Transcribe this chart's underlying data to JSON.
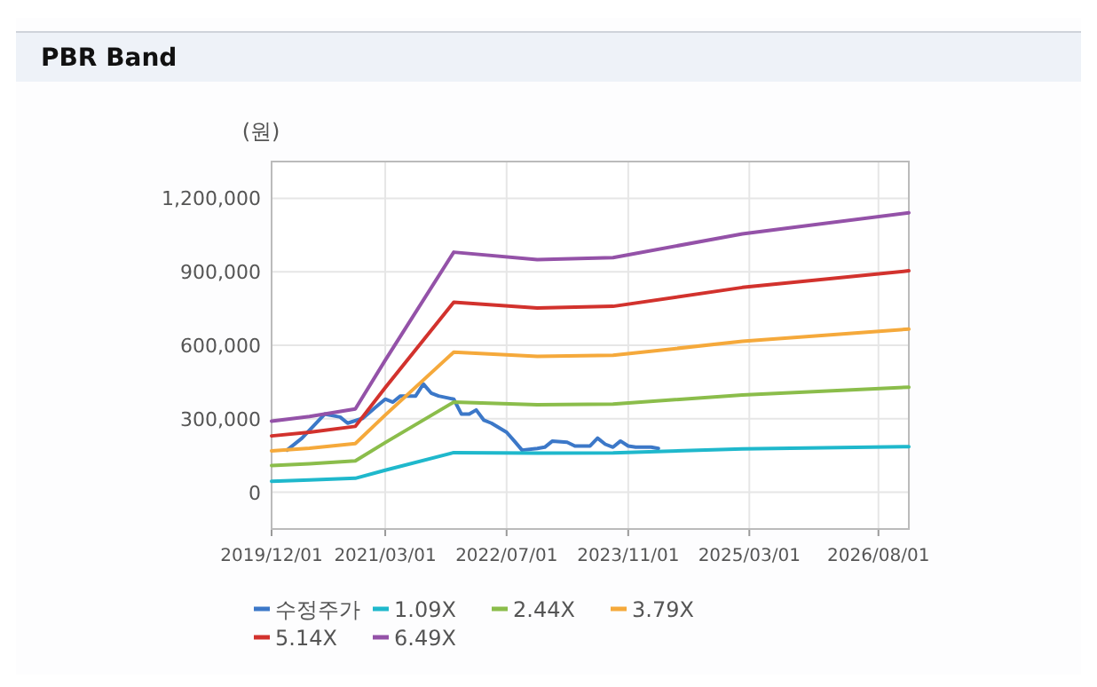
{
  "chart_data": {
    "type": "line",
    "title": "PBR Band",
    "ylabel": "(원)",
    "xlim": [
      "2019-12-01",
      "2026-12-01"
    ],
    "xticks": [
      {
        "value": "2019-12-01",
        "label": "2019/12/01"
      },
      {
        "value": "2021-03-01",
        "label": "2021/03/01"
      },
      {
        "value": "2022-07-01",
        "label": "2022/07/01"
      },
      {
        "value": "2023-11-01",
        "label": "2023/11/01"
      },
      {
        "value": "2025-03-01",
        "label": "2025/03/01"
      },
      {
        "value": "2026-08-01",
        "label": "2026/08/01"
      }
    ],
    "ylim": [
      -150000,
      1350000
    ],
    "yticks": [
      {
        "value": 0,
        "label": "0"
      },
      {
        "value": 300000,
        "label": "300,000"
      },
      {
        "value": 600000,
        "label": "600,000"
      },
      {
        "value": 900000,
        "label": "900,000"
      },
      {
        "value": 1200000,
        "label": "1,200,000"
      }
    ],
    "grid": true,
    "legend": "bottom",
    "series": [
      {
        "name": "수정주가",
        "color": "#3c78c8",
        "x": [
          "2020-02-01",
          "2020-04-01",
          "2020-07-01",
          "2020-09-01",
          "2020-10-01",
          "2020-12-01",
          "2021-02-01",
          "2021-03-01",
          "2021-04-01",
          "2021-05-01",
          "2021-07-01",
          "2021-08-01",
          "2021-09-01",
          "2021-10-01",
          "2021-12-01",
          "2022-01-01",
          "2022-02-01",
          "2022-03-01",
          "2022-04-01",
          "2022-05-01",
          "2022-07-01",
          "2022-08-01",
          "2022-09-01",
          "2022-11-01",
          "2022-12-01",
          "2023-01-01",
          "2023-03-01",
          "2023-04-01",
          "2023-06-01",
          "2023-07-01",
          "2023-08-01",
          "2023-09-01",
          "2023-10-01",
          "2023-11-01",
          "2023-12-01",
          "2024-02-01",
          "2024-03-01"
        ],
        "values": [
          172000,
          221000,
          319000,
          307000,
          282000,
          302000,
          356000,
          380000,
          368000,
          393000,
          393000,
          442000,
          405000,
          393000,
          380000,
          319000,
          319000,
          336000,
          294000,
          282000,
          245000,
          209000,
          172000,
          179000,
          184000,
          209000,
          204000,
          189000,
          189000,
          221000,
          196000,
          184000,
          209000,
          189000,
          184000,
          184000,
          179000
        ]
      },
      {
        "name": "1.09X",
        "color": "#1fb8cc",
        "x": [
          "2019-12-01",
          "2020-05-01",
          "2020-11-01",
          "2021-03-01",
          "2021-12-01",
          "2022-11-01",
          "2023-09-01",
          "2025-02-01",
          "2026-12-01"
        ],
        "values": [
          45000,
          50000,
          57000,
          90000,
          162000,
          160000,
          161000,
          177000,
          186000
        ]
      },
      {
        "name": "2.44X",
        "color": "#8bbd4b",
        "x": [
          "2019-12-01",
          "2020-05-01",
          "2020-11-01",
          "2021-03-01",
          "2021-12-01",
          "2022-11-01",
          "2023-09-01",
          "2025-02-01",
          "2026-12-01"
        ],
        "values": [
          109000,
          116000,
          128000,
          203000,
          368000,
          357000,
          360000,
          397000,
          429000
        ]
      },
      {
        "name": "3.79X",
        "color": "#f5a93b",
        "x": [
          "2019-12-01",
          "2020-05-01",
          "2020-11-01",
          "2021-03-01",
          "2021-12-01",
          "2022-11-01",
          "2023-09-01",
          "2025-02-01",
          "2026-12-01"
        ],
        "values": [
          169000,
          180000,
          199000,
          315000,
          572000,
          555000,
          559000,
          616000,
          666000
        ]
      },
      {
        "name": "5.14X",
        "color": "#d2322d",
        "x": [
          "2019-12-01",
          "2020-05-01",
          "2020-11-01",
          "2021-03-01",
          "2021-12-01",
          "2022-11-01",
          "2023-09-01",
          "2025-02-01",
          "2026-12-01"
        ],
        "values": [
          230000,
          245000,
          269000,
          427000,
          776000,
          752000,
          759000,
          836000,
          904000
        ]
      },
      {
        "name": "6.49X",
        "color": "#9452a8",
        "x": [
          "2019-12-01",
          "2020-05-01",
          "2020-11-01",
          "2021-03-01",
          "2021-12-01",
          "2022-11-01",
          "2023-09-01",
          "2025-02-01",
          "2026-12-01"
        ],
        "values": [
          290000,
          309000,
          340000,
          539000,
          980000,
          950000,
          958000,
          1055000,
          1141000
        ]
      }
    ]
  }
}
